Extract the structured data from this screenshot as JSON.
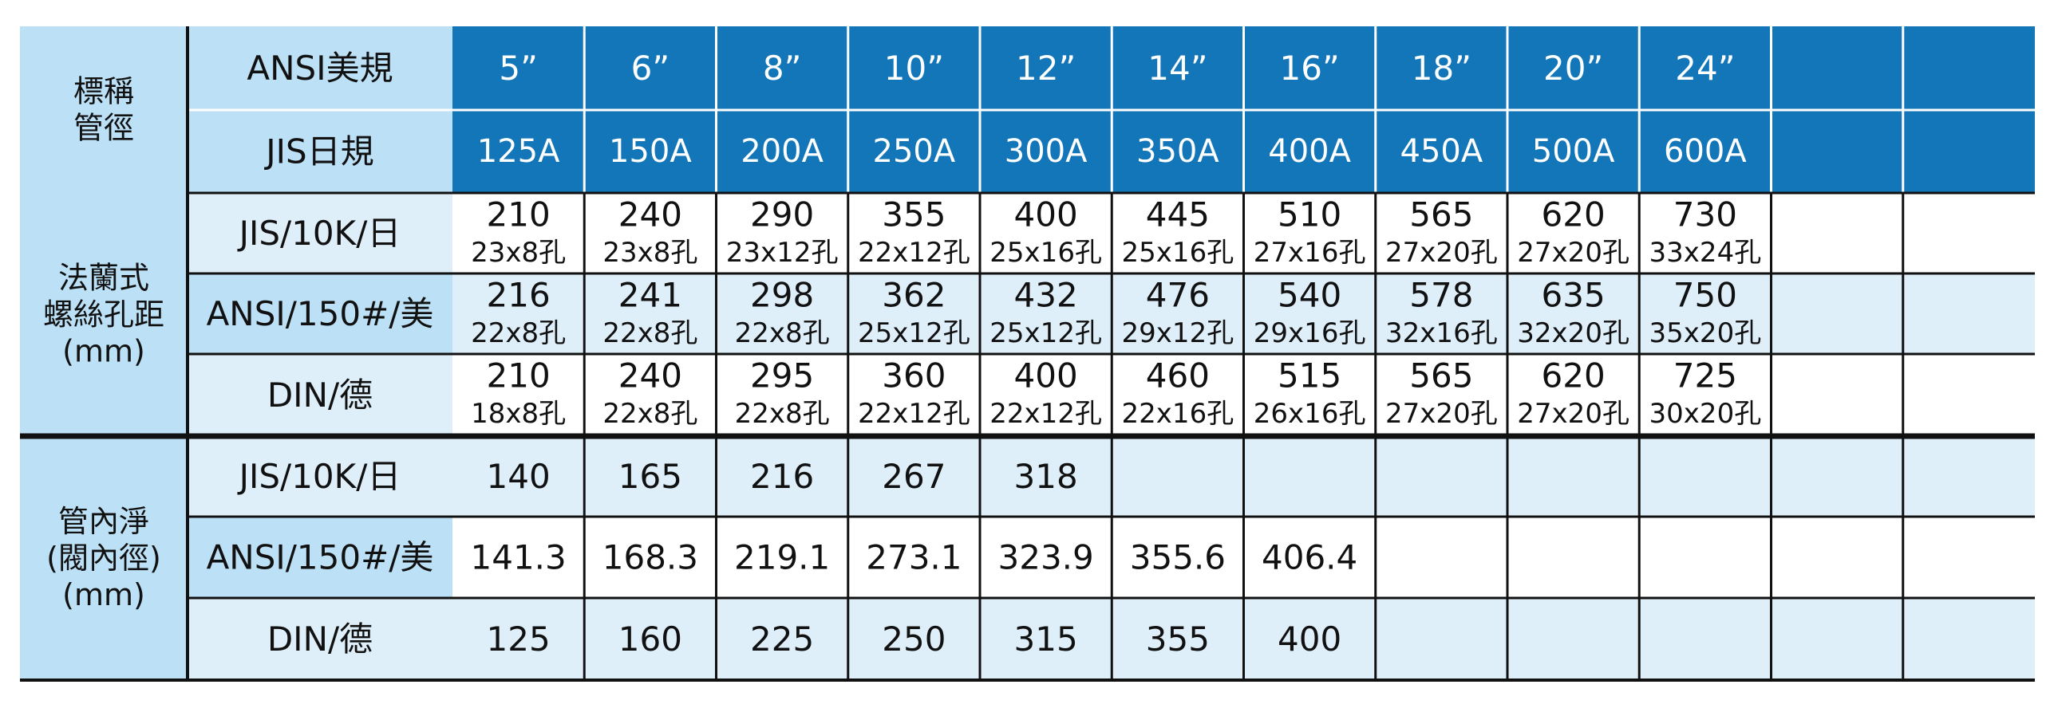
{
  "colors": {
    "header_blue": "#1276b9",
    "cat_bg": "#bce0f6",
    "light_bg": "#deeffa",
    "white": "#ffffff",
    "text_white": "#ffffff",
    "text_dark": "#111111",
    "line": "#111111"
  },
  "categories": {
    "nominal": [
      "標稱",
      "管徑"
    ],
    "flange": [
      "法蘭式",
      "螺絲孔距",
      "(mm)"
    ],
    "inner": [
      "管內淨",
      "(閥內徑)",
      "(mm)"
    ]
  },
  "standards": {
    "ansi": "ANSI美規",
    "jis": "JIS日規"
  },
  "size_headers": {
    "ansi": [
      "5”",
      "6”",
      "8”",
      "10”",
      "12”",
      "14”",
      "16”",
      "18”",
      "20”",
      "24”",
      "",
      ""
    ],
    "jis": [
      "125A",
      "150A",
      "200A",
      "250A",
      "300A",
      "350A",
      "400A",
      "450A",
      "500A",
      "600A",
      "",
      ""
    ]
  },
  "flange_rows": [
    {
      "label": "JIS/10K/日",
      "cells": [
        {
          "pitch": "210",
          "bolts": "23x8孔"
        },
        {
          "pitch": "240",
          "bolts": "23x8孔"
        },
        {
          "pitch": "290",
          "bolts": "23x12孔"
        },
        {
          "pitch": "355",
          "bolts": "22x12孔"
        },
        {
          "pitch": "400",
          "bolts": "25x16孔"
        },
        {
          "pitch": "445",
          "bolts": "25x16孔"
        },
        {
          "pitch": "510",
          "bolts": "27x16孔"
        },
        {
          "pitch": "565",
          "bolts": "27x20孔"
        },
        {
          "pitch": "620",
          "bolts": "27x20孔"
        },
        {
          "pitch": "730",
          "bolts": "33x24孔"
        },
        {
          "pitch": "",
          "bolts": ""
        },
        {
          "pitch": "",
          "bolts": ""
        }
      ]
    },
    {
      "label": "ANSI/150#/美",
      "cells": [
        {
          "pitch": "216",
          "bolts": "22x8孔"
        },
        {
          "pitch": "241",
          "bolts": "22x8孔"
        },
        {
          "pitch": "298",
          "bolts": "22x8孔"
        },
        {
          "pitch": "362",
          "bolts": "25x12孔"
        },
        {
          "pitch": "432",
          "bolts": "25x12孔"
        },
        {
          "pitch": "476",
          "bolts": "29x12孔"
        },
        {
          "pitch": "540",
          "bolts": "29x16孔"
        },
        {
          "pitch": "578",
          "bolts": "32x16孔"
        },
        {
          "pitch": "635",
          "bolts": "32x20孔"
        },
        {
          "pitch": "750",
          "bolts": "35x20孔"
        },
        {
          "pitch": "",
          "bolts": ""
        },
        {
          "pitch": "",
          "bolts": ""
        }
      ]
    },
    {
      "label": "DIN/德",
      "cells": [
        {
          "pitch": "210",
          "bolts": "18x8孔"
        },
        {
          "pitch": "240",
          "bolts": "22x8孔"
        },
        {
          "pitch": "295",
          "bolts": "22x8孔"
        },
        {
          "pitch": "360",
          "bolts": "22x12孔"
        },
        {
          "pitch": "400",
          "bolts": "22x12孔"
        },
        {
          "pitch": "460",
          "bolts": "22x16孔"
        },
        {
          "pitch": "515",
          "bolts": "26x16孔"
        },
        {
          "pitch": "565",
          "bolts": "27x20孔"
        },
        {
          "pitch": "620",
          "bolts": "27x20孔"
        },
        {
          "pitch": "725",
          "bolts": "30x20孔"
        },
        {
          "pitch": "",
          "bolts": ""
        },
        {
          "pitch": "",
          "bolts": ""
        }
      ]
    }
  ],
  "inner_rows": [
    {
      "label": "JIS/10K/日",
      "values": [
        "140",
        "165",
        "216",
        "267",
        "318",
        "",
        "",
        "",
        "",
        "",
        "",
        ""
      ]
    },
    {
      "label": "ANSI/150#/美",
      "values": [
        "141.3",
        "168.3",
        "219.1",
        "273.1",
        "323.9",
        "355.6",
        "406.4",
        "",
        "",
        "",
        "",
        ""
      ]
    },
    {
      "label": "DIN/德",
      "values": [
        "125",
        "160",
        "225",
        "250",
        "315",
        "355",
        "400",
        "",
        "",
        "",
        "",
        ""
      ]
    }
  ]
}
